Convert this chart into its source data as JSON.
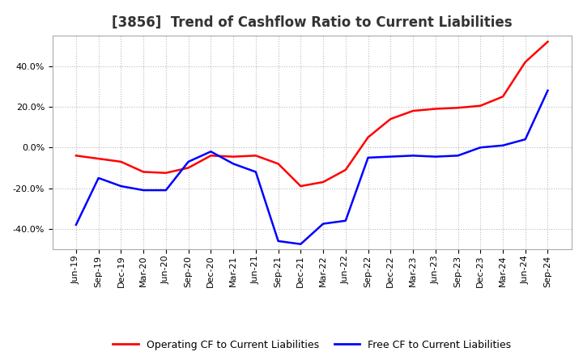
{
  "title": "[3856]  Trend of Cashflow Ratio to Current Liabilities",
  "x_labels": [
    "Jun-19",
    "Sep-19",
    "Dec-19",
    "Mar-20",
    "Jun-20",
    "Sep-20",
    "Dec-20",
    "Mar-21",
    "Jun-21",
    "Sep-21",
    "Dec-21",
    "Mar-22",
    "Jun-22",
    "Sep-22",
    "Dec-22",
    "Mar-23",
    "Jun-23",
    "Sep-23",
    "Dec-23",
    "Mar-24",
    "Jun-24",
    "Sep-24"
  ],
  "operating_cf": [
    -4.0,
    -5.5,
    -7.0,
    -12.0,
    -12.5,
    -10.0,
    -4.0,
    -4.5,
    -4.0,
    -8.0,
    -19.0,
    -17.0,
    -11.0,
    5.0,
    14.0,
    18.0,
    19.0,
    19.5,
    20.5,
    25.0,
    42.0,
    52.0
  ],
  "free_cf": [
    -38.0,
    -15.0,
    -19.0,
    -21.0,
    -21.0,
    -7.0,
    -2.0,
    -8.0,
    -12.0,
    -46.0,
    -47.5,
    -37.5,
    -36.0,
    -5.0,
    -4.5,
    -4.0,
    -4.5,
    -4.0,
    0.0,
    1.0,
    4.0,
    28.0
  ],
  "operating_cf_color": "#ff0000",
  "free_cf_color": "#0000ff",
  "background_color": "#ffffff",
  "plot_bg_color": "#ffffff",
  "grid_color": "#bbbbbb",
  "ylim": [
    -50,
    55
  ],
  "yticks": [
    -40.0,
    -20.0,
    0.0,
    20.0,
    40.0
  ],
  "legend_operating": "Operating CF to Current Liabilities",
  "legend_free": "Free CF to Current Liabilities",
  "title_fontsize": 12,
  "tick_fontsize": 8,
  "legend_fontsize": 9
}
